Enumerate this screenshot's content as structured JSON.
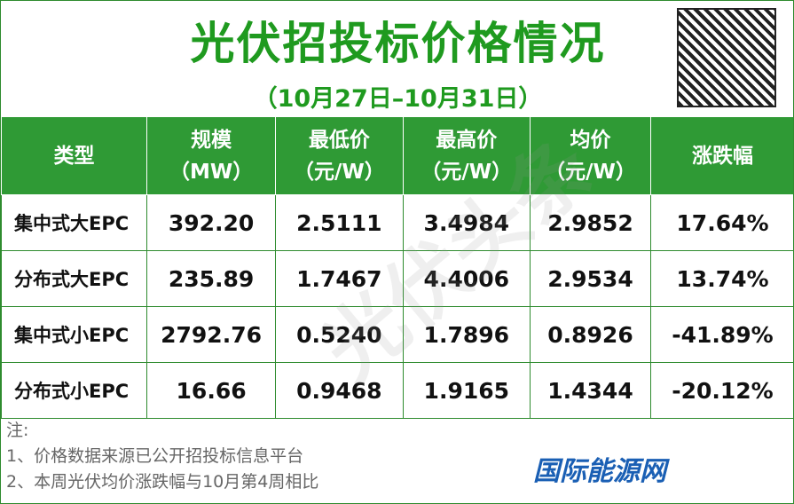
{
  "header": {
    "title": "光伏招投标价格情况",
    "subtitle": "（10月27日–10月31日）"
  },
  "table": {
    "columns": [
      {
        "name": "类型"
      },
      {
        "name": "规模",
        "unit": "（MW）"
      },
      {
        "name": "最低价",
        "unit": "（元/W）"
      },
      {
        "name": "最高价",
        "unit": "（元/W）"
      },
      {
        "name": "均价",
        "unit": "（元/W）"
      },
      {
        "name": "涨跌幅"
      }
    ],
    "rows": [
      [
        "集中式大EPC",
        "392.20",
        "2.5111",
        "3.4984",
        "2.9852",
        "17.64%"
      ],
      [
        "分布式大EPC",
        "235.89",
        "1.7467",
        "4.4006",
        "2.9534",
        "13.74%"
      ],
      [
        "集中式小EPC",
        "2792.76",
        "0.5240",
        "1.7896",
        "0.8926",
        "-41.89%"
      ],
      [
        "分布式小EPC",
        "16.66",
        "0.9468",
        "1.9165",
        "1.4344",
        "-20.12%"
      ]
    ]
  },
  "notes": {
    "heading": "注:",
    "items": [
      "1、价格数据来源已公开招投标信息平台",
      "2、本周光伏均价涨跌幅与10月第4周相比"
    ]
  },
  "watermark": "光伏头条",
  "logo": "国际能源网"
}
